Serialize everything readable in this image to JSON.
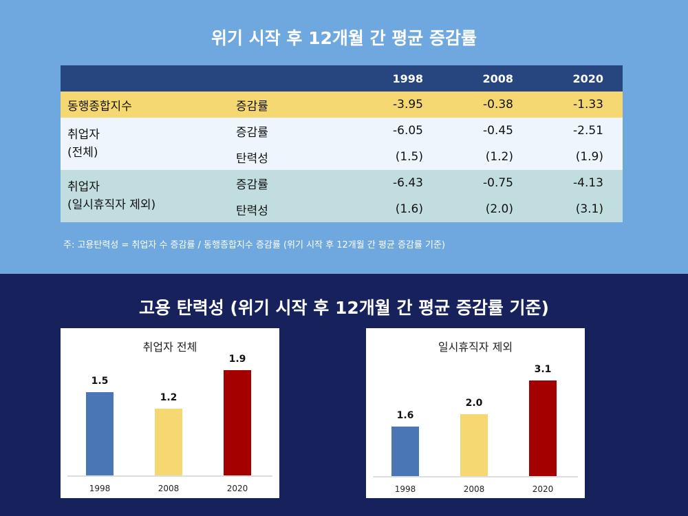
{
  "top_title": "위기 시작 후 12개월 간 평균 증감률",
  "table": {
    "headers": [
      "",
      "",
      "1998",
      "2008",
      "2020"
    ],
    "rows": [
      {
        "group": "동행종합지수",
        "metric": "증감률",
        "values": [
          "-3.95",
          "-0.38",
          "-1.33"
        ]
      },
      {
        "group": "취업자\n(전체)",
        "metric": "증감률",
        "values": [
          "-6.05",
          "-0.45",
          "-2.51"
        ]
      },
      {
        "group": "",
        "metric": "탄력성",
        "values": [
          "(1.5)",
          "(1.2)",
          "(1.9)"
        ]
      },
      {
        "group": "취업자\n(일시휴직자 제외)",
        "metric": "증감률",
        "values": [
          "-6.43",
          "-0.75",
          "-4.13"
        ]
      },
      {
        "group": "",
        "metric": "탄력성",
        "values": [
          "(1.6)",
          "(2.0)",
          "(3.1)"
        ]
      }
    ]
  },
  "note": "주: 고용탄력성 = 취업자 수 증감률 / 동행종합지수 증감률 (위기 시작 후 12개월 간 평균 증감률 기준)",
  "bottom_title": "고용 탄력성 (위기 시작 후 12개월 간 평균 증감률 기준)",
  "chart_data": [
    {
      "type": "bar",
      "title": "취업자 전체",
      "categories": [
        "1998",
        "2008",
        "2020"
      ],
      "values": [
        1.5,
        1.2,
        1.9
      ],
      "colors": [
        "#4a76b5",
        "#f5d871",
        "#a50000"
      ],
      "grid": false
    },
    {
      "type": "bar",
      "title": "일시휴직자 제외",
      "categories": [
        "1998",
        "2008",
        "2020"
      ],
      "values": [
        1.6,
        2.0,
        3.1
      ],
      "colors": [
        "#4a76b5",
        "#f5d871",
        "#a50000"
      ],
      "grid": false
    }
  ]
}
